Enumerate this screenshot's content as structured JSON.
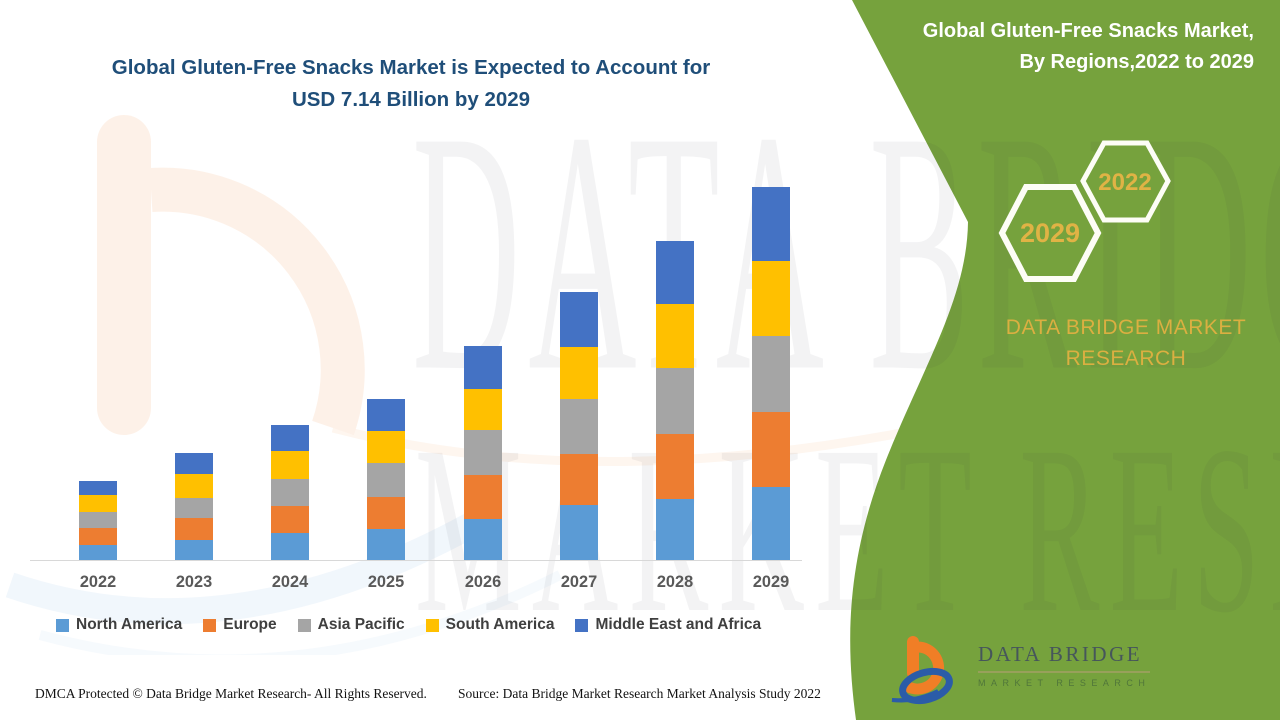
{
  "header": {
    "title_line1": "Global Gluten-Free Snacks Market is Expected to Account for",
    "title_line2": "USD 7.14 Billion by 2029",
    "title_color": "#1F4E79"
  },
  "side_panel": {
    "bg_color": "#76A23D",
    "title_line1": "Global Gluten-Free Snacks Market,",
    "title_line2": "By Regions,2022 to 2029",
    "hexagon_back_label": "2029",
    "hexagon_front_label": "2022",
    "accent_text_color": "#DBAF41",
    "caption_line1": "DATA BRIDGE MARKET",
    "caption_line2": "RESEARCH"
  },
  "chart_data": {
    "type": "bar",
    "stacked": true,
    "title": "Global Gluten-Free Snacks Market is Expected to Account for USD 7.14 Billion by 2029",
    "unit": "USD Billion",
    "categories": [
      "2022",
      "2023",
      "2024",
      "2025",
      "2026",
      "2027",
      "2028",
      "2029"
    ],
    "series": [
      {
        "name": "North America",
        "color": "#5B9BD5",
        "values": [
          0.29,
          0.38,
          0.52,
          0.59,
          0.78,
          1.05,
          1.17,
          1.39
        ]
      },
      {
        "name": "Europe",
        "color": "#ED7D31",
        "values": [
          0.33,
          0.42,
          0.52,
          0.61,
          0.84,
          0.98,
          1.24,
          1.44
        ]
      },
      {
        "name": "Asia Pacific",
        "color": "#A5A5A5",
        "values": [
          0.31,
          0.38,
          0.52,
          0.65,
          0.86,
          1.05,
          1.26,
          1.45
        ]
      },
      {
        "name": "South America",
        "color": "#FFC000",
        "values": [
          0.33,
          0.46,
          0.54,
          0.61,
          0.78,
          1.0,
          1.22,
          1.44
        ]
      },
      {
        "name": "Middle East and Africa",
        "color": "#4472C4",
        "values": [
          0.27,
          0.4,
          0.5,
          0.61,
          0.82,
          1.05,
          1.21,
          1.42
        ]
      }
    ],
    "totals_usd_billion": [
      1.53,
      2.04,
      2.6,
      3.07,
      4.08,
      5.13,
      6.1,
      7.14
    ],
    "highlight": {
      "year": "2029",
      "total": "USD 7.14 Billion"
    },
    "xlabel": "",
    "ylabel": "",
    "y_axis_visible": false,
    "gridlines": false,
    "legend_position": "bottom"
  },
  "watermark": {
    "line1": "DATA BRIDGE",
    "line2": "MARKET RESEARCH"
  },
  "brand_logo": {
    "name": "DATA BRIDGE",
    "subtitle": "MARKET RESEARCH"
  },
  "footer": {
    "dmca": "DMCA Protected © Data Bridge Market Research- All Rights Reserved.",
    "source": "Source: Data Bridge Market Research Market Analysis Study 2022"
  }
}
